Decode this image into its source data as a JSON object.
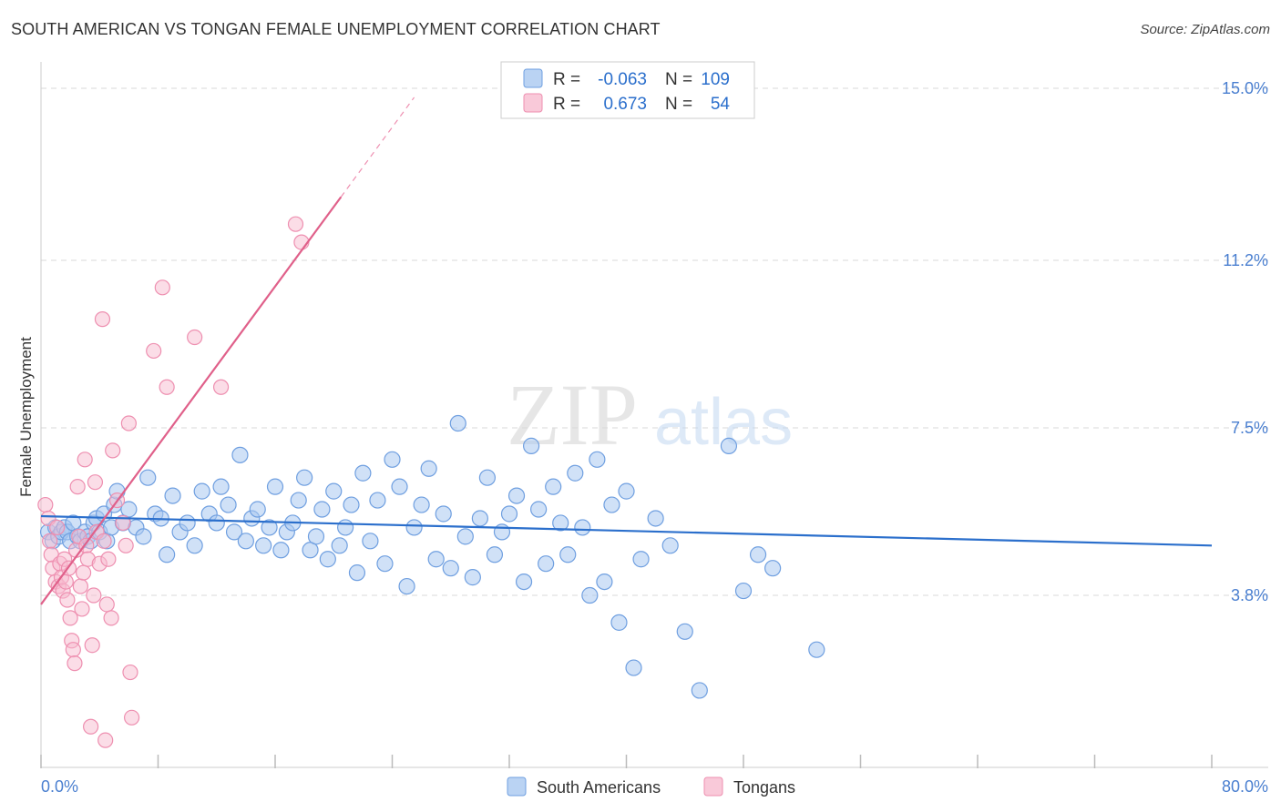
{
  "header": {
    "title": "SOUTH AMERICAN VS TONGAN FEMALE UNEMPLOYMENT CORRELATION CHART",
    "source": "Source: ZipAtlas.com"
  },
  "watermark": {
    "zip": "ZIP",
    "atlas": "atlas"
  },
  "legend_stats": {
    "r_label": "R =",
    "n_label": "N =",
    "rows": [
      {
        "r": "-0.063",
        "n": "109"
      },
      {
        "r": "0.673",
        "n": "54"
      }
    ]
  },
  "colors": {
    "blue_fill": "#a9c8f0",
    "blue_stroke": "#6f9fe0",
    "blue_line": "#2b6fcc",
    "pink_fill": "#f7bcd0",
    "pink_stroke": "#ee8fb0",
    "pink_line": "#e0608a",
    "tick_text": "#4a7fd0",
    "grid": "#d8d8d8"
  },
  "chart_data": {
    "type": "scatter",
    "title": "SOUTH AMERICAN VS TONGAN FEMALE UNEMPLOYMENT CORRELATION CHART",
    "xlabel": "",
    "ylabel": "Female Unemployment",
    "xlim": [
      0,
      80
    ],
    "ylim": [
      0,
      15
    ],
    "x_tick_labels": [
      "0.0%",
      "80.0%"
    ],
    "y_ticks": [
      3.8,
      7.5,
      11.2,
      15.0
    ],
    "y_tick_labels": [
      "3.8%",
      "7.5%",
      "11.2%",
      "15.0%"
    ],
    "grid": true,
    "legend_position": "top-center",
    "series": [
      {
        "name": "South Americans",
        "R": -0.063,
        "N": 109,
        "trend": {
          "x": [
            0,
            80
          ],
          "y": [
            5.55,
            4.9
          ]
        },
        "points": [
          [
            0.5,
            5.2
          ],
          [
            0.8,
            5.0
          ],
          [
            1.0,
            5.3
          ],
          [
            1.2,
            5.1
          ],
          [
            1.4,
            5.2
          ],
          [
            1.6,
            5.3
          ],
          [
            1.8,
            5.2
          ],
          [
            2.0,
            5.0
          ],
          [
            2.2,
            5.4
          ],
          [
            2.5,
            5.1
          ],
          [
            2.7,
            5.0
          ],
          [
            3.0,
            5.2
          ],
          [
            3.2,
            5.1
          ],
          [
            3.4,
            5.0
          ],
          [
            3.6,
            5.4
          ],
          [
            3.8,
            5.5
          ],
          [
            4.0,
            5.2
          ],
          [
            4.3,
            5.6
          ],
          [
            4.5,
            5.0
          ],
          [
            4.8,
            5.3
          ],
          [
            5.0,
            5.8
          ],
          [
            5.2,
            6.1
          ],
          [
            5.6,
            5.4
          ],
          [
            6.0,
            5.7
          ],
          [
            6.5,
            5.3
          ],
          [
            7.0,
            5.1
          ],
          [
            7.3,
            6.4
          ],
          [
            7.8,
            5.6
          ],
          [
            8.2,
            5.5
          ],
          [
            8.6,
            4.7
          ],
          [
            9.0,
            6.0
          ],
          [
            9.5,
            5.2
          ],
          [
            10.0,
            5.4
          ],
          [
            10.5,
            4.9
          ],
          [
            11.0,
            6.1
          ],
          [
            11.5,
            5.6
          ],
          [
            12.0,
            5.4
          ],
          [
            12.3,
            6.2
          ],
          [
            12.8,
            5.8
          ],
          [
            13.2,
            5.2
          ],
          [
            13.6,
            6.9
          ],
          [
            14.0,
            5.0
          ],
          [
            14.4,
            5.5
          ],
          [
            14.8,
            5.7
          ],
          [
            15.2,
            4.9
          ],
          [
            15.6,
            5.3
          ],
          [
            16.0,
            6.2
          ],
          [
            16.4,
            4.8
          ],
          [
            16.8,
            5.2
          ],
          [
            17.2,
            5.4
          ],
          [
            17.6,
            5.9
          ],
          [
            18.0,
            6.4
          ],
          [
            18.4,
            4.8
          ],
          [
            18.8,
            5.1
          ],
          [
            19.2,
            5.7
          ],
          [
            19.6,
            4.6
          ],
          [
            20.0,
            6.1
          ],
          [
            20.4,
            4.9
          ],
          [
            20.8,
            5.3
          ],
          [
            21.2,
            5.8
          ],
          [
            21.6,
            4.3
          ],
          [
            22.0,
            6.5
          ],
          [
            22.5,
            5.0
          ],
          [
            23.0,
            5.9
          ],
          [
            23.5,
            4.5
          ],
          [
            24.0,
            6.8
          ],
          [
            24.5,
            6.2
          ],
          [
            25.0,
            4.0
          ],
          [
            25.5,
            5.3
          ],
          [
            26.0,
            5.8
          ],
          [
            26.5,
            6.6
          ],
          [
            27.0,
            4.6
          ],
          [
            27.5,
            5.6
          ],
          [
            28.0,
            4.4
          ],
          [
            28.5,
            7.6
          ],
          [
            29.0,
            5.1
          ],
          [
            29.5,
            4.2
          ],
          [
            30.0,
            5.5
          ],
          [
            30.5,
            6.4
          ],
          [
            31.0,
            4.7
          ],
          [
            31.5,
            5.2
          ],
          [
            32.0,
            5.6
          ],
          [
            32.5,
            6.0
          ],
          [
            33.0,
            4.1
          ],
          [
            33.5,
            7.1
          ],
          [
            34.0,
            5.7
          ],
          [
            34.5,
            4.5
          ],
          [
            35.0,
            6.2
          ],
          [
            35.5,
            5.4
          ],
          [
            36.0,
            4.7
          ],
          [
            36.5,
            6.5
          ],
          [
            37.0,
            5.3
          ],
          [
            37.5,
            3.8
          ],
          [
            38.0,
            6.8
          ],
          [
            38.5,
            4.1
          ],
          [
            39.0,
            5.8
          ],
          [
            39.5,
            3.2
          ],
          [
            40.0,
            6.1
          ],
          [
            40.5,
            2.2
          ],
          [
            41.0,
            4.6
          ],
          [
            42.0,
            5.5
          ],
          [
            43.0,
            4.9
          ],
          [
            44.0,
            3.0
          ],
          [
            45.0,
            1.7
          ],
          [
            47.0,
            7.1
          ],
          [
            48.0,
            3.9
          ],
          [
            49.0,
            4.7
          ],
          [
            50.0,
            4.4
          ],
          [
            53.0,
            2.6
          ]
        ]
      },
      {
        "name": "Tongans",
        "R": 0.673,
        "N": 54,
        "trend": {
          "x": [
            0,
            20.5
          ],
          "y": [
            3.6,
            12.6
          ]
        },
        "trend_extension": {
          "x": [
            20.5,
            25.5
          ],
          "y": [
            12.6,
            14.8
          ]
        },
        "points": [
          [
            0.3,
            5.8
          ],
          [
            0.5,
            5.5
          ],
          [
            0.6,
            5.0
          ],
          [
            0.7,
            4.7
          ],
          [
            0.8,
            4.4
          ],
          [
            1.0,
            4.1
          ],
          [
            1.1,
            5.3
          ],
          [
            1.2,
            4.0
          ],
          [
            1.3,
            4.5
          ],
          [
            1.4,
            4.2
          ],
          [
            1.5,
            3.9
          ],
          [
            1.6,
            4.6
          ],
          [
            1.7,
            4.1
          ],
          [
            1.8,
            3.7
          ],
          [
            1.9,
            4.4
          ],
          [
            2.0,
            3.3
          ],
          [
            2.1,
            2.8
          ],
          [
            2.2,
            2.6
          ],
          [
            2.3,
            2.3
          ],
          [
            2.4,
            4.8
          ],
          [
            2.5,
            6.2
          ],
          [
            2.6,
            5.1
          ],
          [
            2.7,
            4.0
          ],
          [
            2.8,
            3.5
          ],
          [
            2.9,
            4.3
          ],
          [
            3.0,
            6.8
          ],
          [
            3.1,
            4.9
          ],
          [
            3.2,
            4.6
          ],
          [
            3.4,
            0.9
          ],
          [
            3.5,
            2.7
          ],
          [
            3.6,
            3.8
          ],
          [
            3.7,
            6.3
          ],
          [
            3.8,
            5.2
          ],
          [
            4.0,
            4.5
          ],
          [
            4.2,
            9.9
          ],
          [
            4.3,
            5.0
          ],
          [
            4.4,
            0.6
          ],
          [
            4.5,
            3.6
          ],
          [
            4.6,
            4.6
          ],
          [
            4.8,
            3.3
          ],
          [
            4.9,
            7.0
          ],
          [
            5.2,
            5.9
          ],
          [
            5.6,
            5.4
          ],
          [
            5.8,
            4.9
          ],
          [
            6.0,
            7.6
          ],
          [
            6.1,
            2.1
          ],
          [
            6.2,
            1.1
          ],
          [
            7.7,
            9.2
          ],
          [
            8.3,
            10.6
          ],
          [
            8.6,
            8.4
          ],
          [
            10.5,
            9.5
          ],
          [
            12.3,
            8.4
          ],
          [
            17.4,
            12.0
          ],
          [
            17.8,
            11.6
          ]
        ]
      }
    ]
  },
  "bottom_legend": [
    {
      "label": "South Americans"
    },
    {
      "label": "Tongans"
    }
  ]
}
